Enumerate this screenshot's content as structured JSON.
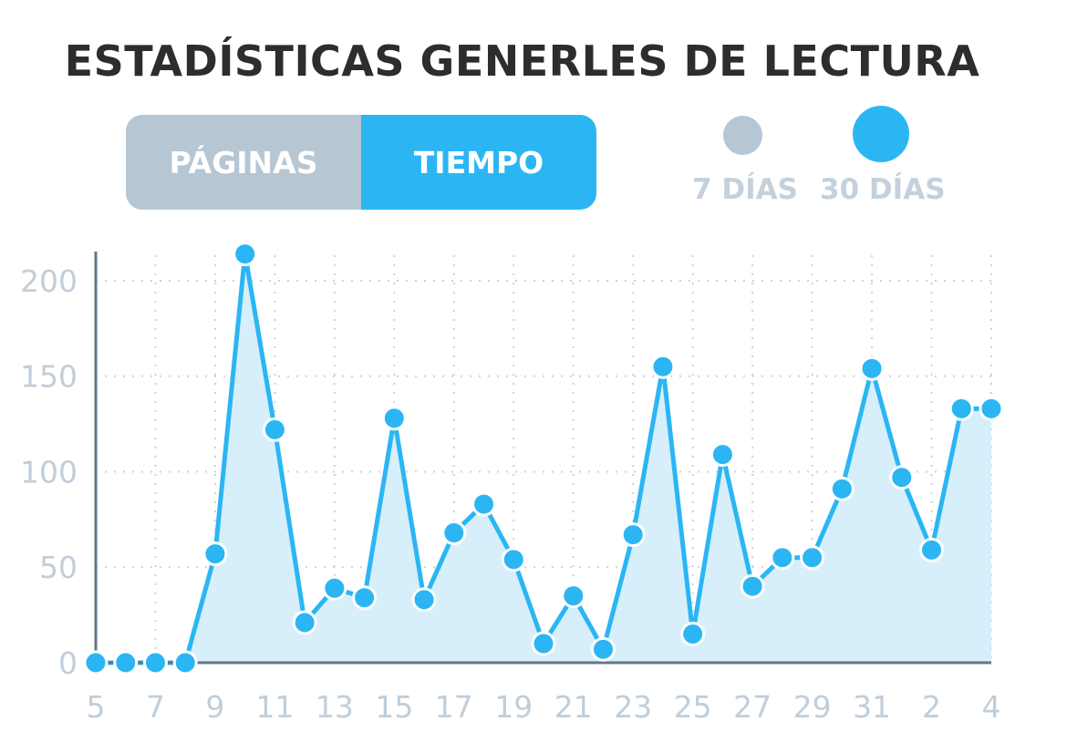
{
  "title": "ESTADÍSTICAS GENERLES DE LECTURA",
  "toggle": {
    "paginas_label": "PÁGINAS",
    "tiempo_label": "TIEMPO",
    "active": "TIEMPO"
  },
  "range": {
    "short_label": "7 DÍAS",
    "long_label": "30 DÍAS",
    "active": "30 DÍAS"
  },
  "colors": {
    "accent": "#2bb6f3",
    "inactive": "#b7c6d3",
    "area_fill": "#d6effb",
    "axis": "#5f7785"
  },
  "chart_data": {
    "type": "area",
    "title": "ESTADÍSTICAS GENERLES DE LECTURA",
    "xlabel": "",
    "ylabel": "",
    "ylim": [
      0,
      210
    ],
    "yticks": [
      0,
      50,
      100,
      150,
      200
    ],
    "grid": true,
    "x": [
      "5",
      "6",
      "7",
      "8",
      "9",
      "10",
      "11",
      "12",
      "13",
      "14",
      "15",
      "16",
      "17",
      "18",
      "19",
      "20",
      "21",
      "22",
      "23",
      "24",
      "25",
      "26",
      "27",
      "28",
      "29",
      "30",
      "31",
      "1",
      "2",
      "3",
      "4"
    ],
    "xtick_labels": [
      "5",
      "7",
      "9",
      "11",
      "13",
      "15",
      "17",
      "19",
      "21",
      "23",
      "25",
      "27",
      "29",
      "31",
      "2",
      "4"
    ],
    "series": [
      {
        "values": [
          0,
          0,
          0,
          0,
          57,
          214,
          122,
          21,
          39,
          34,
          128,
          33,
          68,
          83,
          54,
          10,
          35,
          7,
          67,
          155,
          15,
          109,
          40,
          55,
          55,
          91,
          154,
          97,
          59,
          133,
          133
        ]
      }
    ]
  }
}
